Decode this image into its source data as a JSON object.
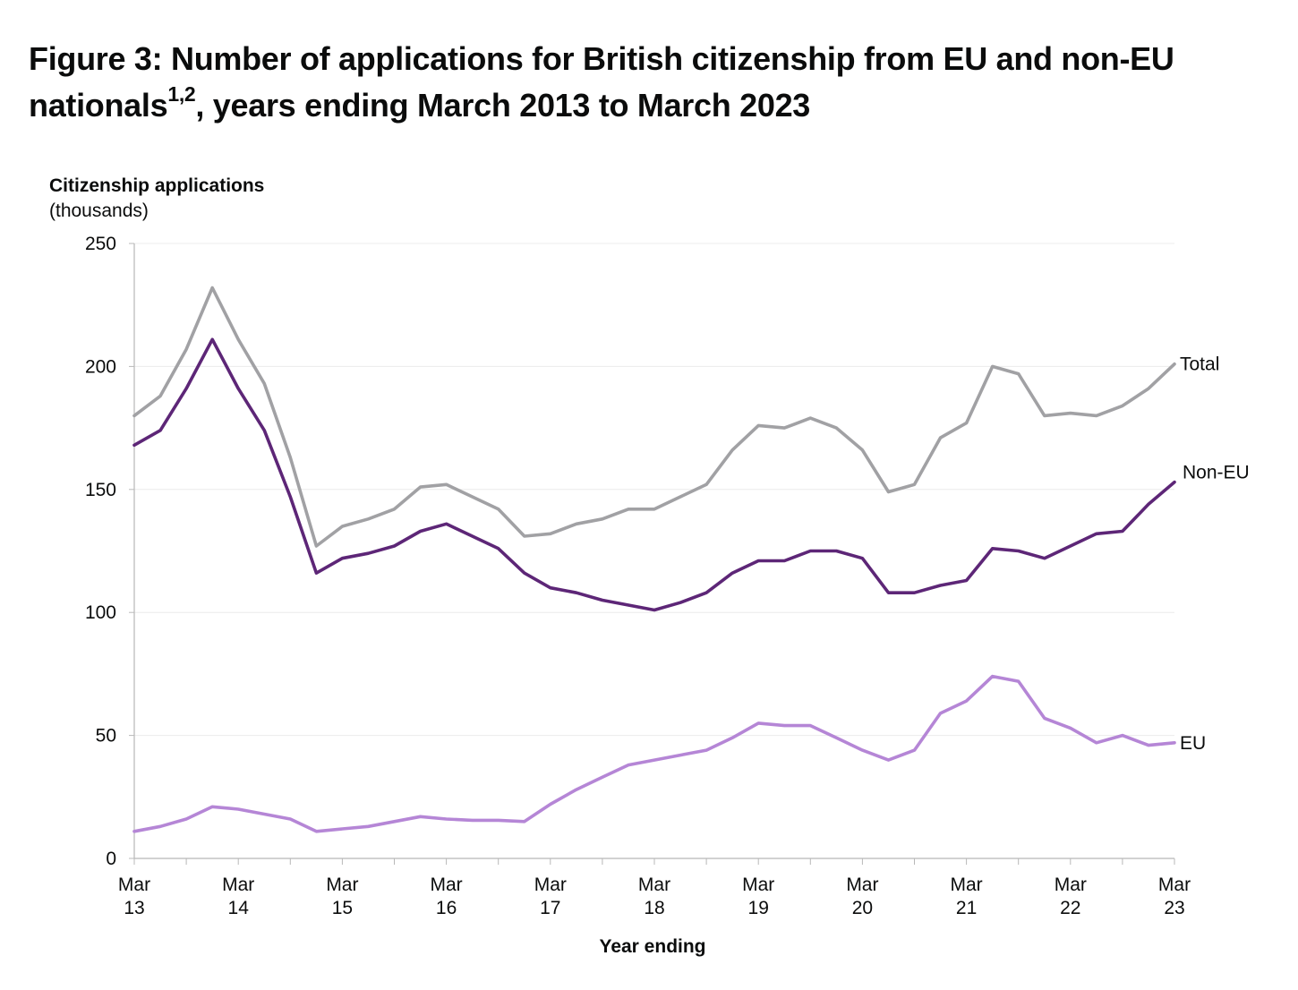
{
  "figure": {
    "title_main": "Figure 3: Number of applications for British citizenship from EU and non-EU nationals",
    "title_sup": "1,2",
    "title_end": ", years ending March 2013 to March 2023"
  },
  "chart_data": {
    "type": "line",
    "ylabel": "Citizenship applications",
    "ylabel_unit": "(thousands)",
    "xlabel": "Year ending",
    "ylim": [
      0,
      250
    ],
    "yticks": [
      "0",
      "50",
      "100",
      "150",
      "200",
      "250"
    ],
    "grid": true,
    "xtick_labels": [
      {
        "line1": "Mar",
        "line2": "13"
      },
      {
        "line1": "Mar",
        "line2": "14"
      },
      {
        "line1": "Mar",
        "line2": "15"
      },
      {
        "line1": "Mar",
        "line2": "16"
      },
      {
        "line1": "Mar",
        "line2": "17"
      },
      {
        "line1": "Mar",
        "line2": "18"
      },
      {
        "line1": "Mar",
        "line2": "19"
      },
      {
        "line1": "Mar",
        "line2": "20"
      },
      {
        "line1": "Mar",
        "line2": "21"
      },
      {
        "line1": "Mar",
        "line2": "22"
      },
      {
        "line1": "Mar",
        "line2": "23"
      }
    ],
    "x_quarters": [
      "Mar 13",
      "Jun 13",
      "Sep 13",
      "Dec 13",
      "Mar 14",
      "Jun 14",
      "Sep 14",
      "Dec 14",
      "Mar 15",
      "Jun 15",
      "Sep 15",
      "Dec 15",
      "Mar 16",
      "Jun 16",
      "Sep 16",
      "Dec 16",
      "Mar 17",
      "Jun 17",
      "Sep 17",
      "Dec 17",
      "Mar 18",
      "Jun 18",
      "Sep 18",
      "Dec 18",
      "Mar 19",
      "Jun 19",
      "Sep 19",
      "Dec 19",
      "Mar 20",
      "Jun 20",
      "Sep 20",
      "Dec 20",
      "Mar 21",
      "Jun 21",
      "Sep 21",
      "Dec 21",
      "Mar 22",
      "Jun 22",
      "Sep 22",
      "Dec 22",
      "Mar 23"
    ],
    "series": [
      {
        "name": "Total",
        "color": "#a1a1a4",
        "values": [
          180,
          188,
          207,
          232,
          211,
          193,
          163,
          127,
          135,
          138,
          142,
          151,
          152,
          147,
          142,
          131,
          132,
          136,
          138,
          142,
          142,
          147,
          152,
          166,
          176,
          175,
          179,
          175,
          166,
          149,
          152,
          171,
          177,
          200,
          197,
          180,
          181,
          180,
          184,
          191,
          201
        ]
      },
      {
        "name": "Non-EU",
        "color": "#5d2677",
        "values": [
          168,
          174,
          191,
          211,
          191,
          174,
          147,
          116,
          122,
          124,
          127,
          133,
          136,
          131,
          126,
          116,
          110,
          108,
          105,
          103,
          101,
          104,
          108,
          116,
          121,
          121,
          125,
          125,
          122,
          108,
          108,
          111,
          113,
          126,
          125,
          122,
          127,
          132,
          133,
          144,
          153
        ]
      },
      {
        "name": "EU",
        "color": "#b586d6",
        "values": [
          11,
          13,
          16,
          21,
          20,
          18,
          16,
          11,
          12,
          13,
          15,
          17,
          16,
          15.5,
          15.5,
          15,
          22,
          28,
          33,
          38,
          40,
          42,
          44,
          49,
          55,
          54,
          54,
          49,
          44,
          40,
          44,
          59,
          64,
          74,
          72,
          57,
          53,
          47,
          50,
          46,
          47
        ]
      }
    ]
  }
}
